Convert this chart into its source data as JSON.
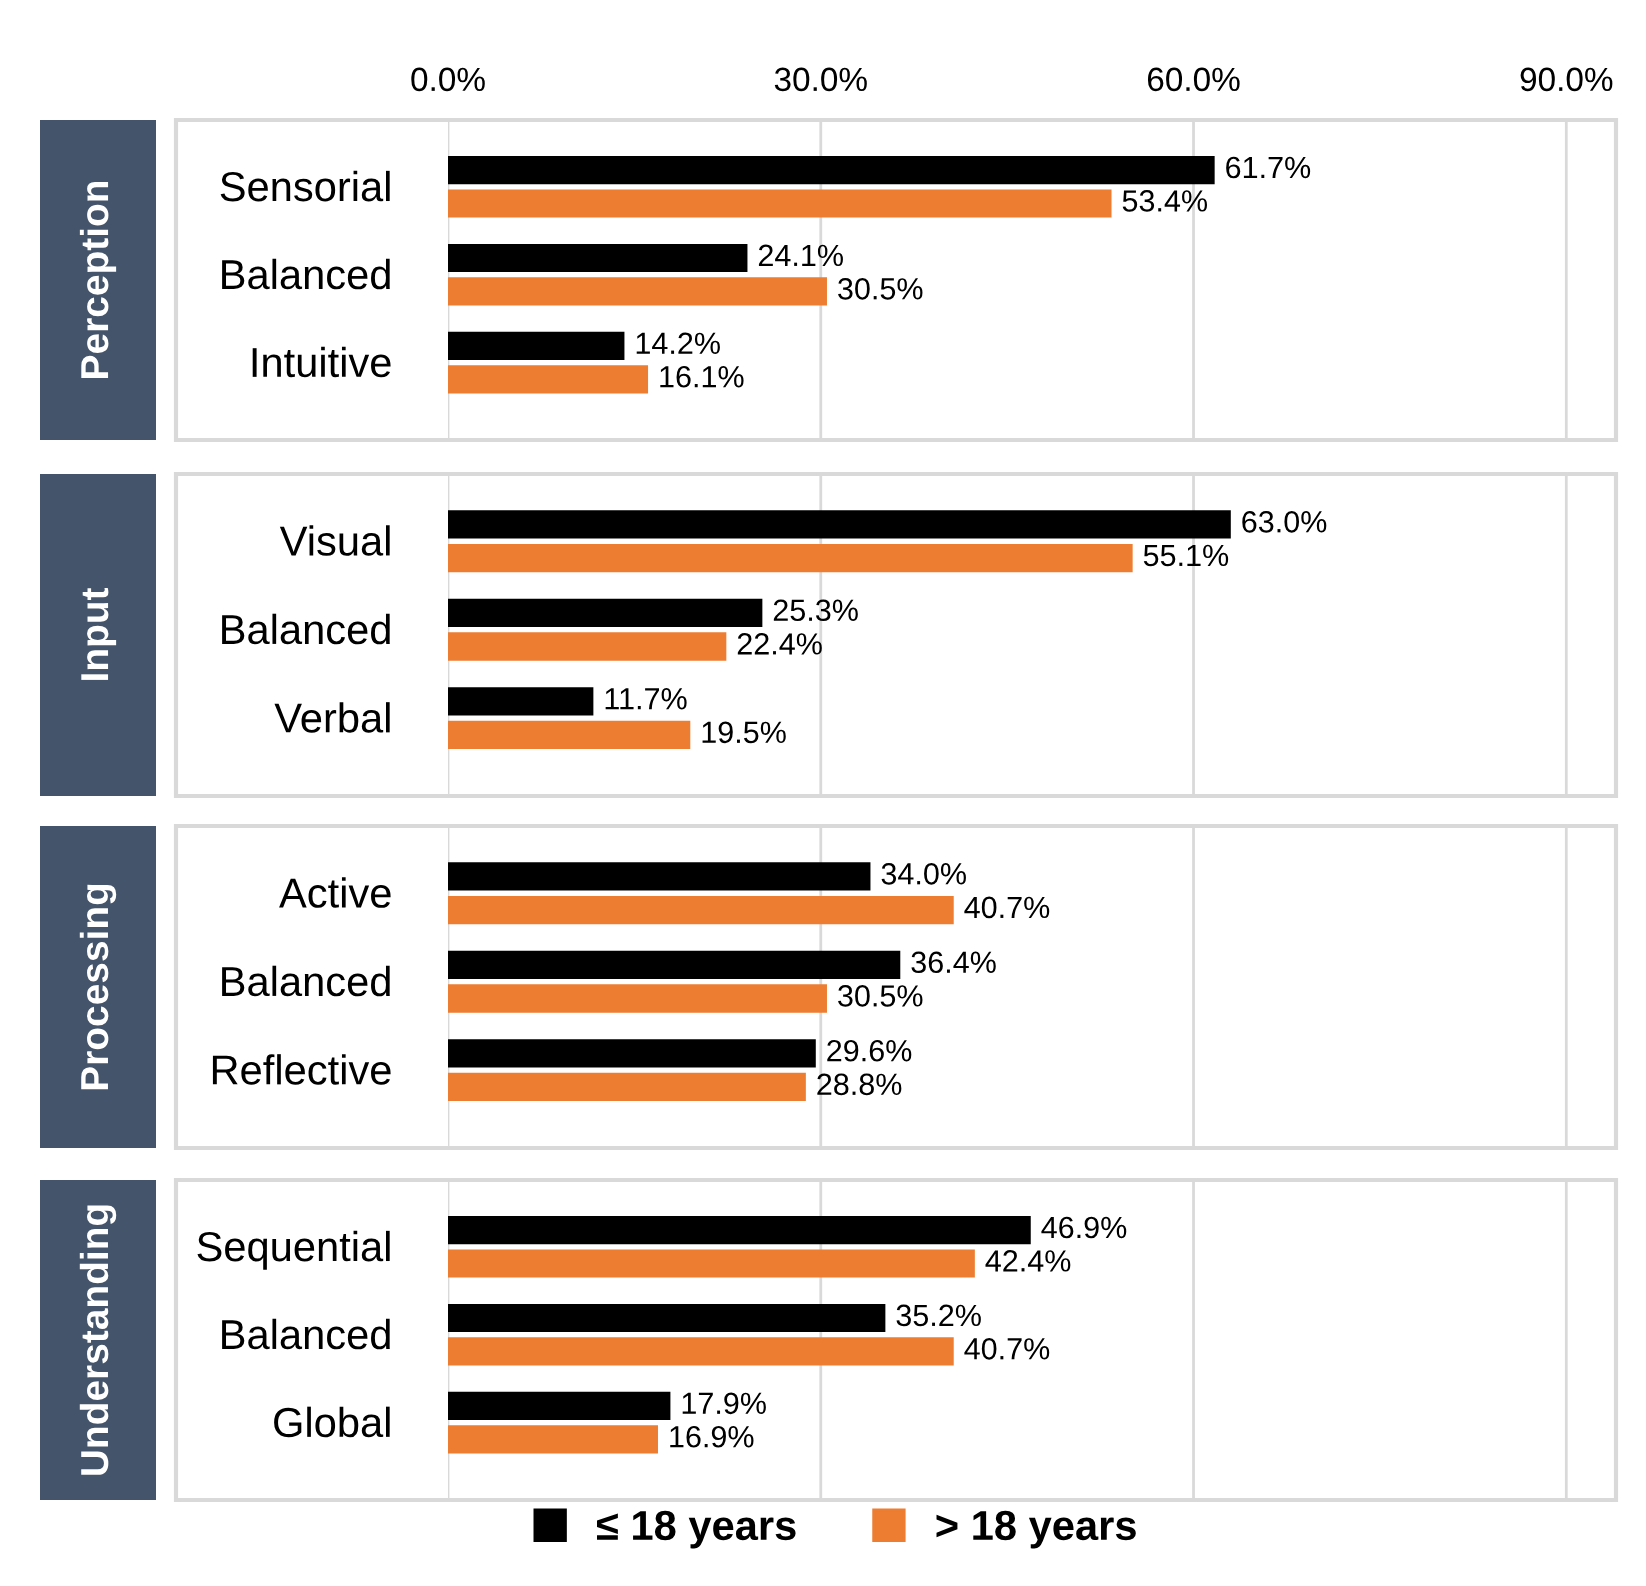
{
  "chart_data": [
    {
      "type": "bar",
      "orientation": "horizontal",
      "title": "Perception",
      "categories": [
        "Sensorial",
        "Balanced",
        "Intuitive"
      ],
      "xlim": [
        0,
        94
      ],
      "xticks": [
        {
          "value": 0,
          "label": "0.0%"
        },
        {
          "value": 30,
          "label": "30.0%"
        },
        {
          "value": 60,
          "label": "60.0%"
        },
        {
          "value": 90,
          "label": "90.0%"
        }
      ],
      "grid": "x",
      "legend": "bottom",
      "series": [
        {
          "name": "≤ 18 years",
          "color": "#000000",
          "values": [
            61.7,
            24.1,
            14.2
          ],
          "value_labels": [
            "61.7%",
            "24.1%",
            "14.2%"
          ]
        },
        {
          "name": "> 18 years",
          "color": "#ed7d31",
          "values": [
            53.4,
            30.5,
            16.1
          ],
          "value_labels": [
            "53.4%",
            "30.5%",
            "16.1%"
          ]
        }
      ]
    },
    {
      "type": "bar",
      "orientation": "horizontal",
      "title": "Input",
      "categories": [
        "Visual",
        "Balanced",
        "Verbal"
      ],
      "xlim": [
        0,
        94
      ],
      "grid": "x",
      "tick_labels": "y",
      "series": [
        {
          "color": "#000000",
          "values": [
            63.0,
            25.3,
            11.7
          ],
          "value_labels": [
            "63.0%",
            "25.3%",
            "11.7%"
          ]
        },
        {
          "color": "#ed7d31",
          "values": [
            55.1,
            22.4,
            19.5
          ],
          "value_labels": [
            "55.1%",
            "22.4%",
            "19.5%"
          ]
        }
      ]
    },
    {
      "type": "bar",
      "orientation": "horizontal",
      "title": "Processing",
      "categories": [
        "Active",
        "Balanced",
        "Reflective"
      ],
      "xlim": [
        0,
        94
      ],
      "grid": "x",
      "tick_labels": "y",
      "series": [
        {
          "color": "#000000",
          "values": [
            34.0,
            36.4,
            29.6
          ],
          "value_labels": [
            "34.0%",
            "36.4%",
            "29.6%"
          ]
        },
        {
          "color": "#ed7d31",
          "values": [
            40.7,
            30.5,
            28.8
          ],
          "value_labels": [
            "40.7%",
            "30.5%",
            "28.8%"
          ]
        }
      ]
    },
    {
      "type": "bar",
      "orientation": "horizontal",
      "title": "Understanding",
      "categories": [
        "Sequential",
        "Balanced",
        "Global"
      ],
      "xlim": [
        0,
        94
      ],
      "grid": "x",
      "tick_labels": "y",
      "series": [
        {
          "color": "#000000",
          "values": [
            46.9,
            35.2,
            17.9
          ],
          "value_labels": [
            "46.9%",
            "35.2%",
            "17.9%"
          ]
        },
        {
          "color": "#ed7d31",
          "values": [
            42.4,
            40.7,
            16.9
          ],
          "value_labels": [
            "42.4%",
            "40.7%",
            "16.9%"
          ]
        }
      ]
    }
  ]
}
